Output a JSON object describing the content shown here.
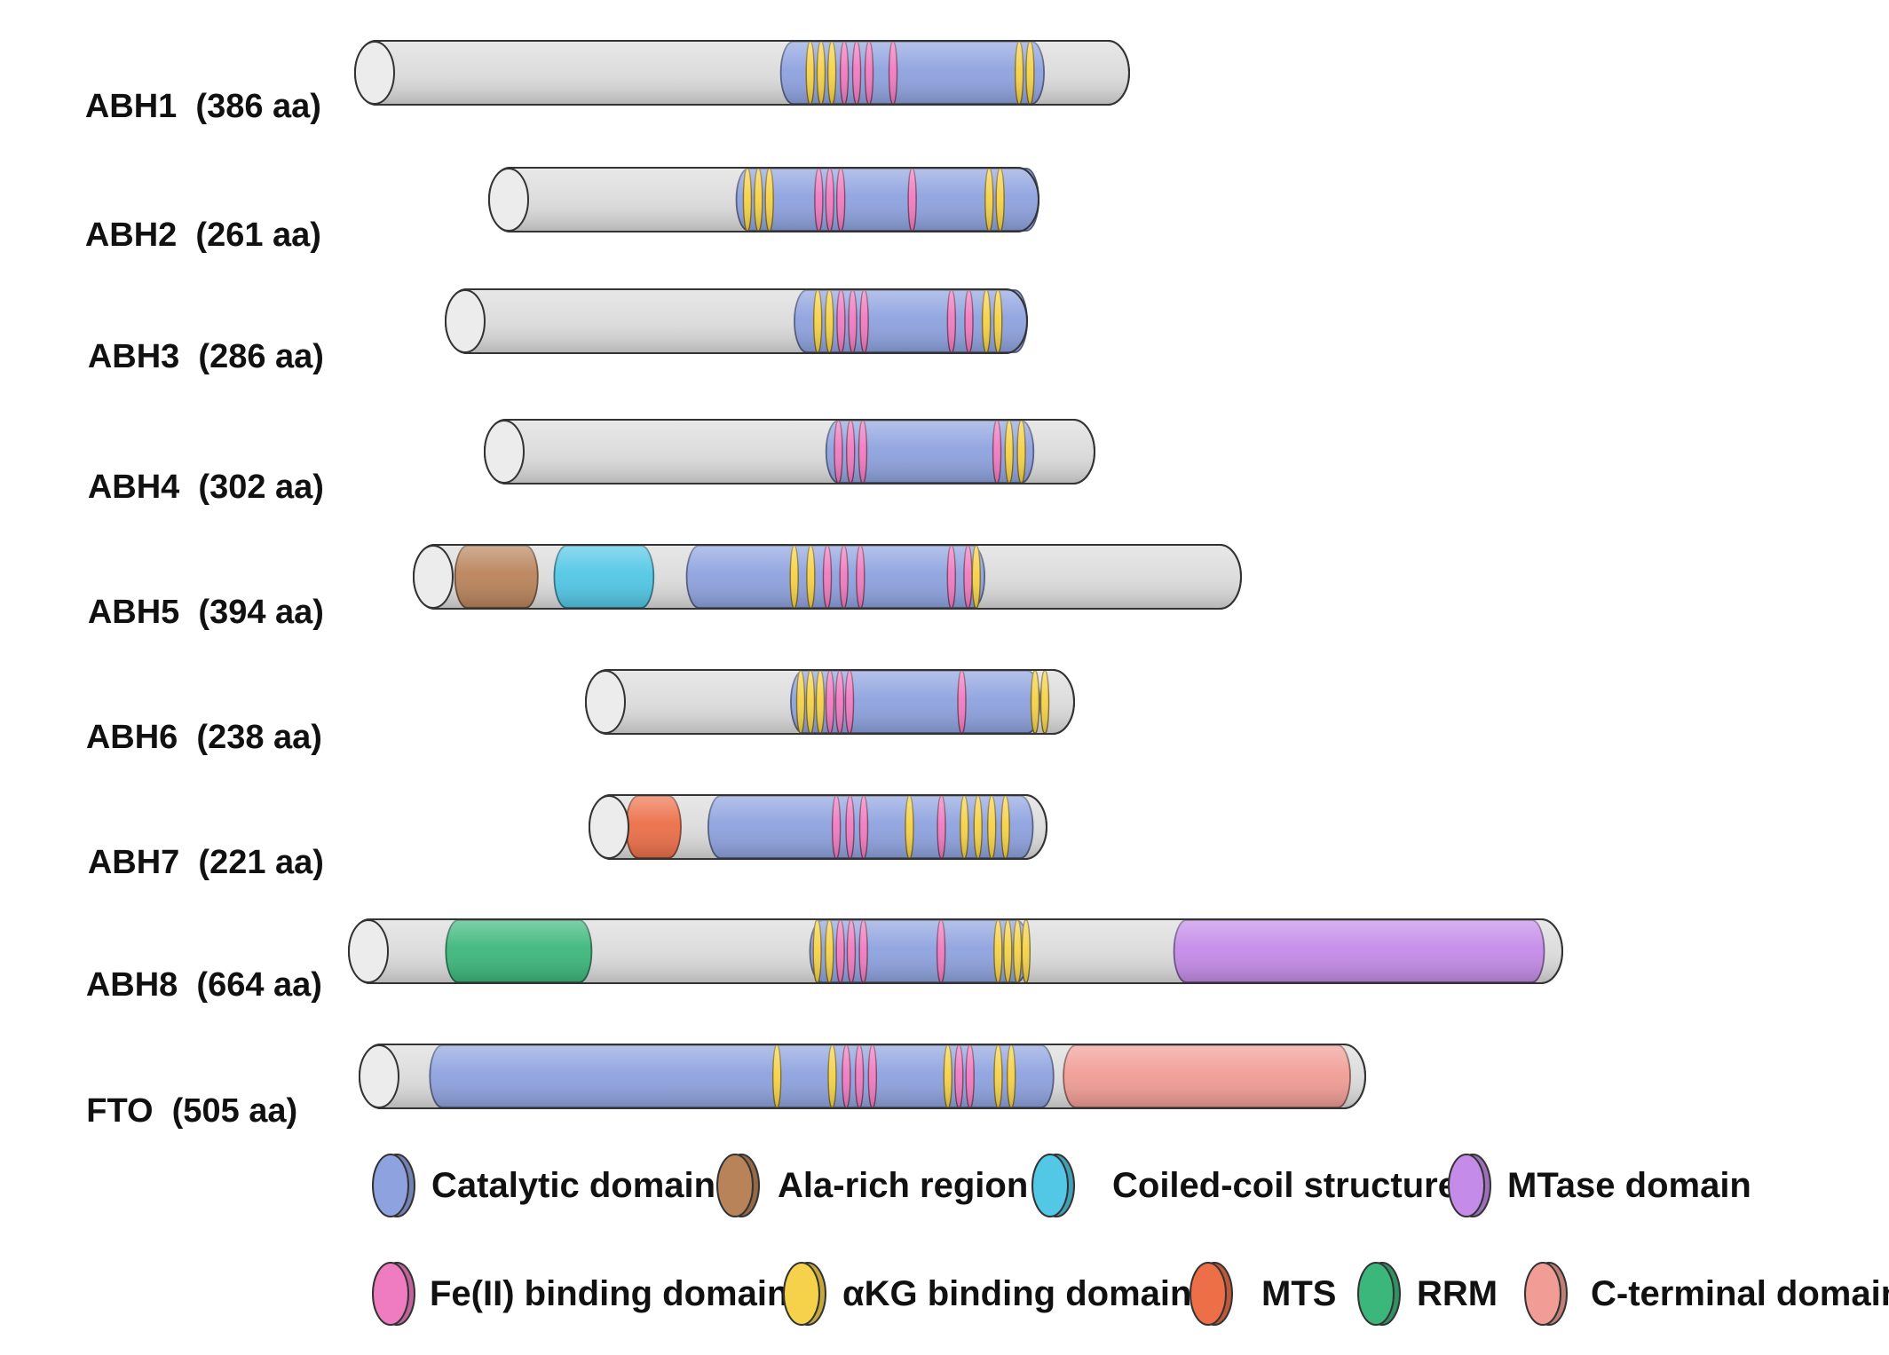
{
  "proteins": [
    {
      "name": "ABH1",
      "length": "(386 aa)",
      "body": [
        [
          "catalytic",
          0.55,
          0.89
        ]
      ],
      "stripes": [
        [
          "akg",
          0.588
        ],
        [
          "akg",
          0.602
        ],
        [
          "akg",
          0.616
        ],
        [
          "fe",
          0.632
        ],
        [
          "fe",
          0.648
        ],
        [
          "fe",
          0.664
        ],
        [
          "fe",
          0.695
        ],
        [
          "akg",
          0.858
        ],
        [
          "akg",
          0.872
        ]
      ]
    },
    {
      "name": "ABH2",
      "length": "(261 aa)",
      "body": [
        [
          "catalytic",
          0.45,
          1.0
        ]
      ],
      "stripes": [
        [
          "akg",
          0.47
        ],
        [
          "akg",
          0.49
        ],
        [
          "akg",
          0.51
        ],
        [
          "fe",
          0.6
        ],
        [
          "fe",
          0.62
        ],
        [
          "fe",
          0.64
        ],
        [
          "fe",
          0.77
        ],
        [
          "akg",
          0.91
        ],
        [
          "akg",
          0.93
        ]
      ]
    },
    {
      "name": "ABH3",
      "length": "(286 aa)",
      "body": [
        [
          "catalytic",
          0.6,
          1.0
        ]
      ],
      "stripes": [
        [
          "akg",
          0.64
        ],
        [
          "akg",
          0.66
        ],
        [
          "fe",
          0.68
        ],
        [
          "fe",
          0.7
        ],
        [
          "fe",
          0.72
        ],
        [
          "fe",
          0.87
        ],
        [
          "fe",
          0.9
        ],
        [
          "akg",
          0.93
        ],
        [
          "akg",
          0.95
        ]
      ]
    },
    {
      "name": "ABH4",
      "length": "(302 aa)",
      "body": [
        [
          "catalytic",
          0.56,
          0.9
        ]
      ],
      "stripes": [
        [
          "fe",
          0.58
        ],
        [
          "fe",
          0.6
        ],
        [
          "fe",
          0.62
        ],
        [
          "fe",
          0.84
        ],
        [
          "akg",
          0.86
        ],
        [
          "akg",
          0.88
        ]
      ]
    },
    {
      "name": "ABH5",
      "length": "(394 aa)",
      "body": [
        [
          "alarich",
          0.05,
          0.15
        ],
        [
          "coiled",
          0.17,
          0.29
        ],
        [
          "catalytic",
          0.33,
          0.69
        ]
      ],
      "stripes": [
        [
          "akg",
          0.46
        ],
        [
          "akg",
          0.48
        ],
        [
          "fe",
          0.5
        ],
        [
          "fe",
          0.52
        ],
        [
          "fe",
          0.54
        ],
        [
          "fe",
          0.65
        ],
        [
          "fe",
          0.67
        ],
        [
          "akg",
          0.68
        ]
      ]
    },
    {
      "name": "ABH6",
      "length": "(238 aa)",
      "body": [
        [
          "catalytic",
          0.42,
          0.93
        ]
      ],
      "stripes": [
        [
          "akg",
          0.44
        ],
        [
          "akg",
          0.46
        ],
        [
          "akg",
          0.48
        ],
        [
          "fe",
          0.5
        ],
        [
          "fe",
          0.52
        ],
        [
          "fe",
          0.54
        ],
        [
          "fe",
          0.77
        ],
        [
          "akg",
          0.92
        ],
        [
          "akg",
          0.94
        ]
      ]
    },
    {
      "name": "ABH7",
      "length": "(221 aa)",
      "body": [
        [
          "mts",
          0.08,
          0.2
        ],
        [
          "catalytic",
          0.26,
          0.97
        ]
      ],
      "stripes": [
        [
          "fe",
          0.54
        ],
        [
          "fe",
          0.57
        ],
        [
          "fe",
          0.6
        ],
        [
          "akg",
          0.7
        ],
        [
          "fe",
          0.77
        ],
        [
          "akg",
          0.82
        ],
        [
          "akg",
          0.85
        ],
        [
          "akg",
          0.88
        ],
        [
          "akg",
          0.91
        ]
      ]
    },
    {
      "name": "ABH8",
      "length": "(664 aa)",
      "body": [
        [
          "rrm",
          0.08,
          0.2
        ],
        [
          "catalytic",
          0.38,
          0.56
        ],
        [
          "mtase",
          0.68,
          0.985
        ]
      ],
      "stripes": [
        [
          "akg",
          0.386
        ],
        [
          "akg",
          0.396
        ],
        [
          "fe",
          0.405
        ],
        [
          "fe",
          0.414
        ],
        [
          "fe",
          0.424
        ],
        [
          "fe",
          0.488
        ],
        [
          "akg",
          0.535
        ],
        [
          "akg",
          0.543
        ],
        [
          "akg",
          0.551
        ],
        [
          "akg",
          0.558
        ]
      ]
    },
    {
      "name": "FTO",
      "length": "(505 aa)",
      "body": [
        [
          "catalytic",
          0.07,
          0.69
        ],
        [
          "cterm",
          0.7,
          0.985
        ]
      ],
      "stripes": [
        [
          "akg",
          0.415
        ],
        [
          "akg",
          0.47
        ],
        [
          "fe",
          0.484
        ],
        [
          "fe",
          0.497
        ],
        [
          "fe",
          0.51
        ],
        [
          "akg",
          0.585
        ],
        [
          "fe",
          0.596
        ],
        [
          "fe",
          0.607
        ],
        [
          "akg",
          0.635
        ],
        [
          "akg",
          0.648
        ]
      ]
    }
  ],
  "legend": [
    {
      "key": "catalytic",
      "label": "Catalytic domain"
    },
    {
      "key": "alarich",
      "label": "Ala-rich region"
    },
    {
      "key": "coiled",
      "label": "Coiled-coil structure"
    },
    {
      "key": "mtase",
      "label": "MTase domain"
    },
    {
      "key": "fe",
      "label": "Fe(II) binding domain"
    },
    {
      "key": "akg",
      "label": "αKG binding domain"
    },
    {
      "key": "mts",
      "label": "MTS"
    },
    {
      "key": "rrm",
      "label": "RRM"
    },
    {
      "key": "cterm",
      "label": "C-terminal domain"
    }
  ],
  "colors": {
    "gray": "#dcdcdc",
    "catalytic": "#8ea2df",
    "alarich": "#b9835a",
    "coiled": "#52c7e6",
    "mtase": "#c48be8",
    "fe": "#ef7cc0",
    "akg": "#f5d24a",
    "mts": "#ec6f48",
    "rrm": "#3cb77b",
    "cterm": "#f19d95"
  }
}
